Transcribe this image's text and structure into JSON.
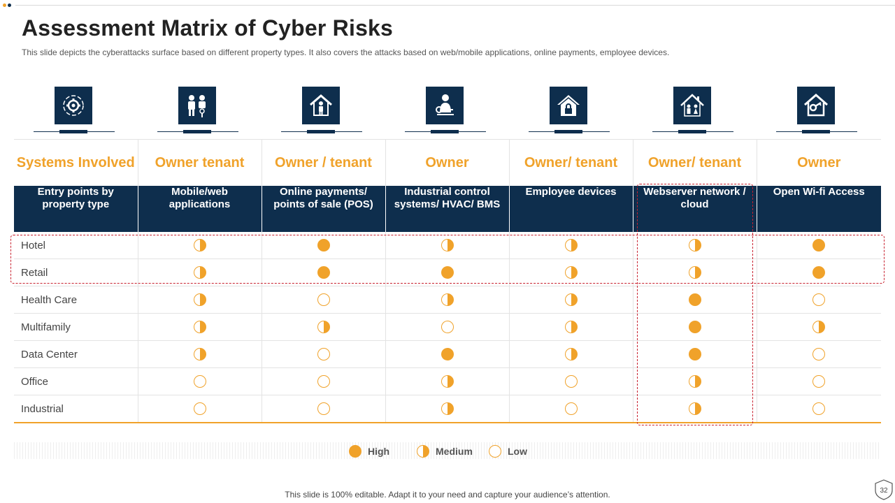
{
  "title": "Assessment Matrix of Cyber Risks",
  "subtitle": "This slide depicts the cyberattacks surface based on different property types.  It also covers the attacks based on web/mobile applications, online payments, employee devices.",
  "icons": [
    "gear-cycle-icon",
    "people-key-icon",
    "house-person-icon",
    "person-key-icon",
    "house-lock-icon",
    "house-family-icon",
    "house-key-icon"
  ],
  "owner_row": [
    "Systems Involved",
    "Owner tenant",
    "Owner / tenant",
    "Owner",
    "Owner/ tenant",
    "Owner/ tenant",
    "Owner"
  ],
  "headers": [
    "Entry points by property type",
    "Mobile/web applications",
    "Online payments/ points of sale (POS)",
    "Industrial control systems/ HVAC/ BMS",
    "Employee devices",
    "Webserver network / cloud",
    "Open Wi-fi Access"
  ],
  "rows": [
    {
      "label": "Hotel",
      "levels": [
        "medium",
        "high",
        "medium",
        "medium",
        "medium",
        "high"
      ]
    },
    {
      "label": "Retail",
      "levels": [
        "medium",
        "high",
        "high",
        "medium",
        "medium",
        "high"
      ]
    },
    {
      "label": "Health Care",
      "levels": [
        "medium",
        "low",
        "medium",
        "medium",
        "high",
        "low"
      ]
    },
    {
      "label": "Multifamily",
      "levels": [
        "medium",
        "medium",
        "low",
        "medium",
        "high",
        "medium"
      ]
    },
    {
      "label": "Data Center",
      "levels": [
        "medium",
        "low",
        "high",
        "medium",
        "high",
        "low"
      ]
    },
    {
      "label": "Office",
      "levels": [
        "low",
        "low",
        "medium",
        "low",
        "medium",
        "low"
      ]
    },
    {
      "label": "Industrial",
      "levels": [
        "low",
        "low",
        "medium",
        "low",
        "medium",
        "low"
      ]
    }
  ],
  "legend": {
    "high": "High",
    "medium": "Medium",
    "low": "Low"
  },
  "footer": "This slide is 100% editable. Adapt it to your need and capture your audience’s attention.",
  "page_number": "32",
  "colors": {
    "navy": "#0e2e4d",
    "orange": "#f0a22a",
    "highlight": "#c8202e"
  }
}
